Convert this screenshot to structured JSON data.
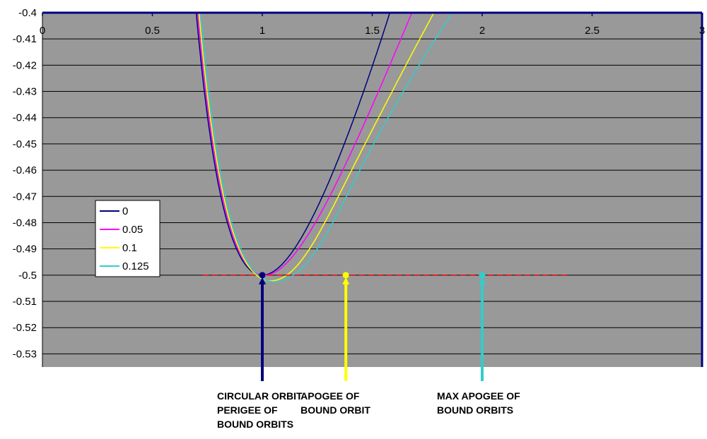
{
  "chart_data": {
    "type": "line",
    "title": "",
    "xlabel": "",
    "ylabel": "",
    "xlim": [
      0,
      3
    ],
    "ylim": [
      -0.535,
      -0.4
    ],
    "x_ticks": [
      "0",
      "0.5",
      "1",
      "1.5",
      "2",
      "2.5",
      "3"
    ],
    "y_ticks": [
      "-0.4",
      "-0.41",
      "-0.42",
      "-0.43",
      "-0.44",
      "-0.45",
      "-0.46",
      "-0.47",
      "-0.48",
      "-0.49",
      "-0.5",
      "-0.51",
      "-0.52",
      "-0.53"
    ],
    "grid": true,
    "legend_position": "left",
    "plot_background": "#999999",
    "axis_color": "#000080",
    "series": [
      {
        "name": "0",
        "color": "#000080",
        "param": 0
      },
      {
        "name": "0.05",
        "color": "#ff00ff",
        "param": 0.05
      },
      {
        "name": "0.1",
        "color": "#ffff00",
        "param": 0.1
      },
      {
        "name": "0.125",
        "color": "#33cccc",
        "param": 0.125
      }
    ],
    "reference_line": {
      "y": -0.5,
      "x": [
        0.73,
        2.4
      ],
      "color": "#ff0000",
      "style": "dashed"
    },
    "markers": [
      {
        "x": 1,
        "y": -0.5,
        "color": "#000080"
      },
      {
        "x": 1.38,
        "y": -0.5,
        "color": "#ffff00"
      },
      {
        "x": 2,
        "y": -0.5,
        "color": "#33cccc"
      }
    ],
    "annotations": [
      {
        "lines": [
          "CIRCULAR ORBIT",
          "PERIGEE OF",
          "BOUND ORBITS"
        ],
        "x": 1,
        "color": "#000080"
      },
      {
        "lines": [
          "APOGEE OF",
          "BOUND ORBIT"
        ],
        "x": 1.38,
        "color": "#ffff00"
      },
      {
        "lines": [
          "MAX APOGEE OF",
          "BOUND ORBITS"
        ],
        "x": 2,
        "color": "#33cccc"
      }
    ]
  }
}
